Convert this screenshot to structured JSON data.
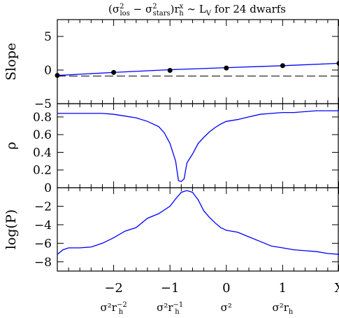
{
  "colors": {
    "curve": "#0000ff",
    "axes": "#000000",
    "points": "#000000",
    "background": "#ffffff"
  },
  "chart_data": {
    "type": "line",
    "title": "(σ²los − σ²stars) r_h^x ∼ L_V for 24 dwarfs",
    "title_parts": {
      "paren_open": "(",
      "sigma1": "σ",
      "sq1": "2",
      "sub1": "los",
      "minus": " − ",
      "sigma2": "σ",
      "sq2": "2",
      "sub2": "stars",
      "paren_close": ")",
      "r": "r",
      "sup_x": "x",
      "sub_h": "h",
      "tail": " ∼ L",
      "sub_v": "V",
      "rest": " for 24 dwarfs"
    },
    "x_ticks": [
      {
        "x": -2,
        "value": "−2",
        "expr": {
          "base": "σ²r",
          "sub": "h",
          "sup": "−2"
        }
      },
      {
        "x": -1,
        "value": "−1",
        "expr": {
          "base": "σ²r",
          "sub": "h",
          "sup": "−1"
        }
      },
      {
        "x": 0,
        "value": "0",
        "expr": {
          "base": "σ²",
          "sub": "",
          "sup": ""
        }
      },
      {
        "x": 1,
        "value": "1",
        "expr": {
          "base": "σ²r",
          "sub": "h",
          "sup": ""
        }
      },
      {
        "x": 2,
        "value": "X",
        "expr": null
      }
    ],
    "xlim": [
      -3,
      2
    ],
    "panels": [
      {
        "ylabel": "Slope",
        "ylim": [
          -5,
          7.5
        ],
        "yticks": [
          {
            "v": 5,
            "label": "5"
          },
          {
            "v": 0,
            "label": "0"
          },
          {
            "v": -5,
            "label": "−5"
          }
        ],
        "ref_line": -0.9,
        "series": [
          {
            "x": [
              -3,
              -2,
              -1,
              0,
              1,
              2
            ],
            "y": [
              -0.8,
              -0.35,
              0.05,
              0.35,
              0.65,
              1.0
            ]
          }
        ],
        "points": {
          "x": [
            -3,
            -2,
            -1,
            0,
            1,
            2
          ],
          "y": [
            -0.8,
            -0.35,
            -0.05,
            0.3,
            0.65,
            1.0
          ]
        }
      },
      {
        "ylabel": "ρ",
        "ylim": [
          0,
          0.95
        ],
        "yticks": [
          {
            "v": 0.8,
            "label": "0.8"
          },
          {
            "v": 0.6,
            "label": "0.6"
          },
          {
            "v": 0.4,
            "label": "0.4"
          },
          {
            "v": 0.2,
            "label": "0.2"
          },
          {
            "v": 0,
            "label": "0"
          }
        ],
        "series": [
          {
            "x": [
              -3,
              -2.8,
              -2.6,
              -2.4,
              -2.2,
              -2,
              -1.8,
              -1.6,
              -1.4,
              -1.2,
              -1.1,
              -1,
              -0.9,
              -0.85,
              -0.8,
              -0.75,
              -0.7,
              -0.6,
              -0.5,
              -0.4,
              -0.3,
              -0.2,
              -0.1,
              0,
              0.2,
              0.4,
              0.6,
              0.8,
              1,
              1.2,
              1.4,
              1.6,
              1.8,
              2
            ],
            "y": [
              0.84,
              0.84,
              0.84,
              0.84,
              0.84,
              0.83,
              0.81,
              0.79,
              0.75,
              0.69,
              0.62,
              0.5,
              0.3,
              0.08,
              0.07,
              0.1,
              0.28,
              0.38,
              0.5,
              0.57,
              0.63,
              0.68,
              0.72,
              0.75,
              0.77,
              0.8,
              0.83,
              0.84,
              0.85,
              0.85,
              0.86,
              0.87,
              0.87,
              0.87
            ]
          }
        ]
      },
      {
        "ylabel": "log(P)",
        "ylim": [
          -9,
          0
        ],
        "yticks": [
          {
            "v": -2,
            "label": "−2"
          },
          {
            "v": -4,
            "label": "−4"
          },
          {
            "v": -6,
            "label": "−6"
          },
          {
            "v": -8,
            "label": "−8"
          }
        ],
        "series": [
          {
            "x": [
              -3,
              -2.9,
              -2.8,
              -2.6,
              -2.4,
              -2.2,
              -2,
              -1.8,
              -1.6,
              -1.4,
              -1.2,
              -1,
              -0.9,
              -0.8,
              -0.7,
              -0.6,
              -0.5,
              -0.4,
              -0.3,
              -0.2,
              -0.1,
              0,
              0.2,
              0.4,
              0.6,
              0.8,
              1,
              1.2,
              1.4,
              1.6,
              1.8,
              2
            ],
            "y": [
              -7.2,
              -6.7,
              -6.5,
              -6.5,
              -6.4,
              -6.0,
              -5.4,
              -4.7,
              -4.3,
              -3.3,
              -2.8,
              -2.0,
              -1.2,
              -0.5,
              -0.3,
              -0.5,
              -1.3,
              -2.5,
              -3.2,
              -3.8,
              -4.3,
              -4.6,
              -4.8,
              -5.3,
              -5.8,
              -6.3,
              -6.5,
              -6.7,
              -6.8,
              -6.9,
              -7.1,
              -7.2
            ]
          }
        ]
      }
    ]
  }
}
